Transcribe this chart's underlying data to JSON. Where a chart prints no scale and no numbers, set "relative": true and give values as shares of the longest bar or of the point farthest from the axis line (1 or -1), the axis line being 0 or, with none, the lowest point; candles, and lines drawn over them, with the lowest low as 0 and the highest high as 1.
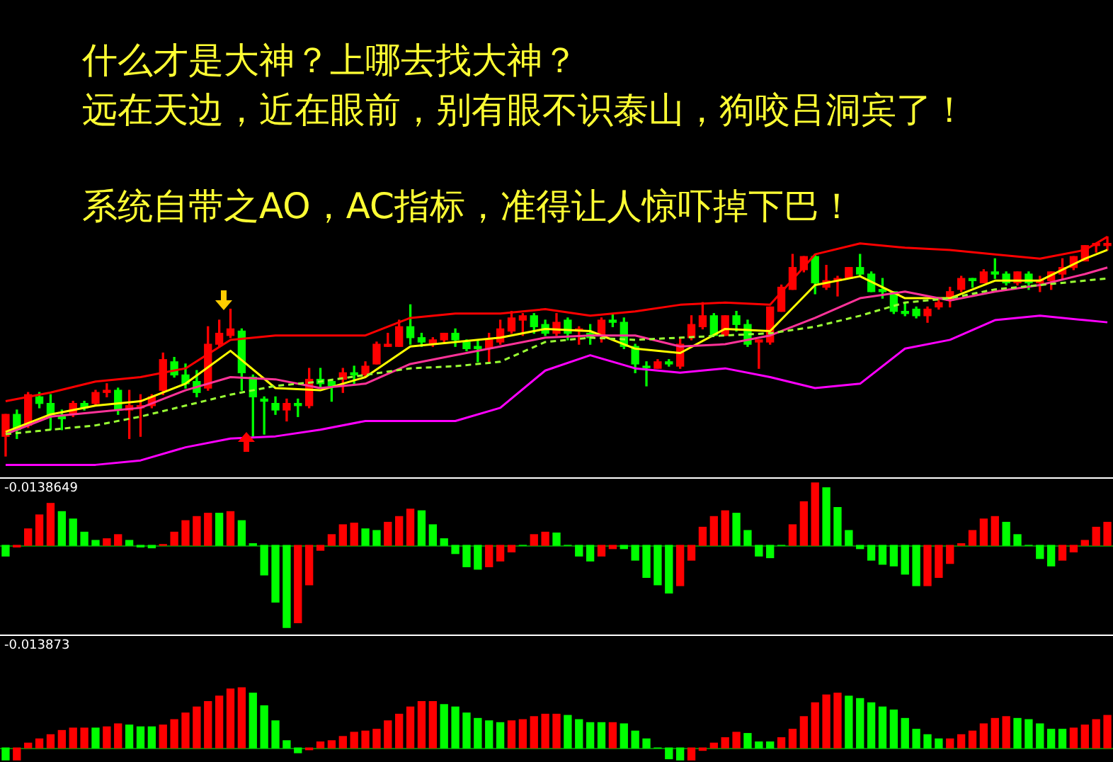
{
  "chart_data": [
    {
      "type": "candlestick",
      "relative": true,
      "title": "什么才是大神？上哪去找大神？",
      "subtitle": "远在天边，近在眼前，别有眼不识泰山，狗咬吕洞宾了！",
      "annotations": [
        "系统自带之AO，AC指标，准得让人惊吓掉下巴！"
      ],
      "categories": [
        null,
        null,
        null,
        null,
        null,
        null,
        null,
        null,
        null,
        null,
        null,
        null,
        null,
        null,
        null,
        null,
        null,
        null,
        null,
        null,
        null,
        null,
        null,
        null,
        null,
        null,
        null,
        null,
        null,
        null,
        null,
        null,
        null,
        null,
        null,
        null,
        null,
        null,
        null,
        null,
        null,
        null,
        null,
        null,
        null,
        null,
        null,
        null,
        null,
        null,
        null,
        null,
        null,
        null,
        null,
        null,
        null,
        null,
        null,
        null,
        null,
        null,
        null,
        null,
        null,
        null,
        null,
        null,
        null,
        null,
        null,
        null,
        null,
        null,
        null,
        null,
        null,
        null,
        null,
        null,
        null,
        null,
        null,
        null,
        null,
        null,
        null,
        null,
        null,
        null,
        null,
        null,
        null,
        null,
        null,
        null,
        null,
        null,
        null
      ],
      "ohlc": [
        [
          0.09,
          0.19,
          0,
          0.19
        ],
        [
          0.19,
          0.21,
          0.08,
          0.12
        ],
        [
          0.14,
          0.29,
          0.13,
          0.28
        ],
        [
          0.27,
          0.29,
          0.22,
          0.24
        ],
        [
          0.24,
          0.28,
          0.12,
          0.19
        ],
        [
          0.18,
          0.21,
          0.12,
          0.17
        ],
        [
          0.19,
          0.25,
          0.18,
          0.24
        ],
        [
          0.24,
          0.25,
          0.21,
          0.22
        ],
        [
          0.24,
          0.3,
          0.23,
          0.29
        ],
        [
          0.29,
          0.33,
          0.27,
          0.3
        ],
        [
          0.3,
          0.31,
          0.19,
          0.21
        ],
        [
          0.21,
          0.3,
          0.08,
          0.23
        ],
        [
          0.22,
          0.28,
          0.09,
          0.23
        ],
        [
          0.23,
          0.28,
          0.22,
          0.27
        ],
        [
          0.3,
          0.47,
          0.28,
          0.44
        ],
        [
          0.43,
          0.45,
          0.36,
          0.37
        ],
        [
          0.37,
          0.42,
          0.31,
          0.33
        ],
        [
          0.34,
          0.39,
          0.27,
          0.29
        ],
        [
          0.31,
          0.59,
          0.3,
          0.51
        ],
        [
          0.51,
          0.62,
          0.5,
          0.56
        ],
        [
          0.55,
          0.67,
          0.54,
          0.58
        ],
        [
          0.57,
          0.58,
          0.3,
          0.38
        ],
        [
          0.36,
          0.37,
          0.09,
          0.27
        ],
        [
          0.26,
          0.27,
          0.1,
          0.25
        ],
        [
          0.24,
          0.27,
          0.19,
          0.21
        ],
        [
          0.21,
          0.26,
          0.16,
          0.24
        ],
        [
          0.24,
          0.26,
          0.18,
          0.23
        ],
        [
          0.23,
          0.4,
          0.22,
          0.35
        ],
        [
          0.35,
          0.4,
          0.31,
          0.33
        ],
        [
          0.34,
          0.35,
          0.25,
          0.32
        ],
        [
          0.35,
          0.4,
          0.29,
          0.38
        ],
        [
          0.38,
          0.41,
          0.33,
          0.37
        ],
        [
          0.37,
          0.43,
          0.36,
          0.41
        ],
        [
          0.42,
          0.52,
          0.42,
          0.51
        ],
        [
          0.5,
          0.56,
          0.5,
          0.51
        ],
        [
          0.5,
          0.62,
          0.5,
          0.59
        ],
        [
          0.59,
          0.69,
          0.51,
          0.54
        ],
        [
          0.54,
          0.56,
          0.5,
          0.52
        ],
        [
          0.51,
          0.54,
          0.5,
          0.53
        ],
        [
          0.53,
          0.56,
          0.52,
          0.56
        ],
        [
          0.56,
          0.58,
          0.5,
          0.53
        ],
        [
          0.52,
          0.53,
          0.48,
          0.49
        ],
        [
          0.5,
          0.53,
          0.43,
          0.49
        ],
        [
          0.49,
          0.56,
          0.43,
          0.53
        ],
        [
          0.52,
          0.62,
          0.51,
          0.58
        ],
        [
          0.57,
          0.66,
          0.56,
          0.63
        ],
        [
          0.62,
          0.65,
          0.55,
          0.64
        ],
        [
          0.64,
          0.65,
          0.56,
          0.59
        ],
        [
          0.6,
          0.62,
          0.55,
          0.56
        ],
        [
          0.56,
          0.65,
          0.55,
          0.61
        ],
        [
          0.62,
          0.63,
          0.53,
          0.56
        ],
        [
          0.57,
          0.59,
          0.51,
          0.58
        ],
        [
          0.56,
          0.6,
          0.51,
          0.54
        ],
        [
          0.55,
          0.63,
          0.52,
          0.62
        ],
        [
          0.62,
          0.65,
          0.59,
          0.61
        ],
        [
          0.61,
          0.63,
          0.49,
          0.5
        ],
        [
          0.5,
          0.51,
          0.38,
          0.42
        ],
        [
          0.41,
          0.43,
          0.32,
          0.41
        ],
        [
          0.4,
          0.44,
          0.4,
          0.43
        ],
        [
          0.43,
          0.44,
          0.41,
          0.42
        ],
        [
          0.41,
          0.54,
          0.4,
          0.51
        ],
        [
          0.54,
          0.64,
          0.53,
          0.6
        ],
        [
          0.59,
          0.7,
          0.58,
          0.64
        ],
        [
          0.64,
          0.65,
          0.55,
          0.55
        ],
        [
          0.55,
          0.64,
          0.55,
          0.64
        ],
        [
          0.64,
          0.66,
          0.57,
          0.6
        ],
        [
          0.6,
          0.62,
          0.5,
          0.51
        ],
        [
          0.52,
          0.53,
          0.4,
          0.53
        ],
        [
          0.52,
          0.68,
          0.51,
          0.68
        ],
        [
          0.66,
          0.78,
          0.66,
          0.77
        ],
        [
          0.76,
          0.92,
          0.76,
          0.86
        ],
        [
          0.85,
          0.91,
          0.84,
          0.91
        ],
        [
          0.91,
          0.92,
          0.74,
          0.79
        ],
        [
          0.77,
          0.87,
          0.76,
          0.8
        ],
        [
          0.8,
          0.82,
          0.73,
          0.81
        ],
        [
          0.81,
          0.86,
          0.81,
          0.86
        ],
        [
          0.86,
          0.92,
          0.82,
          0.83
        ],
        [
          0.83,
          0.84,
          0.75,
          0.75
        ],
        [
          0.76,
          0.81,
          0.72,
          0.75
        ],
        [
          0.75,
          0.75,
          0.65,
          0.66
        ],
        [
          0.66,
          0.7,
          0.64,
          0.65
        ],
        [
          0.67,
          0.68,
          0.63,
          0.64
        ],
        [
          0.64,
          0.68,
          0.61,
          0.67
        ],
        [
          0.68,
          0.71,
          0.67,
          0.7
        ],
        [
          0.71,
          0.77,
          0.68,
          0.75
        ],
        [
          0.76,
          0.82,
          0.75,
          0.81
        ],
        [
          0.81,
          0.81,
          0.77,
          0.8
        ],
        [
          0.79,
          0.85,
          0.79,
          0.84
        ],
        [
          0.84,
          0.9,
          0.81,
          0.83
        ],
        [
          0.83,
          0.84,
          0.78,
          0.79
        ],
        [
          0.79,
          0.84,
          0.78,
          0.84
        ],
        [
          0.83,
          0.84,
          0.76,
          0.79
        ],
        [
          0.79,
          0.82,
          0.75,
          0.8
        ],
        [
          0.8,
          0.84,
          0.76,
          0.84
        ],
        [
          0.83,
          0.9,
          0.81,
          0.86
        ],
        [
          0.86,
          0.91,
          0.85,
          0.91
        ],
        [
          0.89,
          0.96,
          0.89,
          0.96
        ],
        [
          0.96,
          0.97,
          0.93,
          0.97
        ],
        [
          0.96,
          1,
          0.94,
          0.97
        ]
      ],
      "colors": [
        "#ff0000",
        "#00ff00",
        "#ff0000",
        "#00ff00",
        "#00ff00",
        "#00ff00",
        "#ff0000",
        "#00ff00",
        "#ff0000",
        "#ff0000",
        "#00ff00",
        "#ff0000",
        "#ff0000",
        "#ff0000",
        "#ff0000",
        "#00ff00",
        "#00ff00",
        "#00ff00",
        "#ff0000",
        "#ff0000",
        "#ff0000",
        "#00ff00",
        "#00ff00",
        "#00ff00",
        "#00ff00",
        "#ff0000",
        "#00ff00",
        "#ff0000",
        "#00ff00",
        "#00ff00",
        "#ff0000",
        "#00ff00",
        "#ff0000",
        "#ff0000",
        "#ff0000",
        "#ff0000",
        "#00ff00",
        "#00ff00",
        "#ff0000",
        "#ff0000",
        "#00ff00",
        "#00ff00",
        "#00ff00",
        "#ff0000",
        "#ff0000",
        "#ff0000",
        "#ff0000",
        "#00ff00",
        "#00ff00",
        "#ff0000",
        "#00ff00",
        "#ff0000",
        "#00ff00",
        "#ff0000",
        "#00ff00",
        "#00ff00",
        "#00ff00",
        "#00ff00",
        "#ff0000",
        "#00ff00",
        "#ff0000",
        "#ff0000",
        "#ff0000",
        "#00ff00",
        "#ff0000",
        "#00ff00",
        "#00ff00",
        "#ff0000",
        "#ff0000",
        "#ff0000",
        "#ff0000",
        "#ff0000",
        "#00ff00",
        "#ff0000",
        "#ff0000",
        "#ff0000",
        "#00ff00",
        "#00ff00",
        "#00ff00",
        "#00ff00",
        "#00ff00",
        "#00ff00",
        "#ff0000",
        "#ff0000",
        "#ff0000",
        "#ff0000",
        "#00ff00",
        "#ff0000",
        "#00ff00",
        "#00ff00",
        "#ff0000",
        "#00ff00",
        "#ff0000",
        "#ff0000",
        "#ff0000",
        "#ff0000",
        "#ff0000",
        "#ff0000",
        "#ff0000"
      ],
      "series": [
        {
          "type": "line",
          "color": "#ff00ff",
          "values": [
            -0.04,
            null,
            null,
            null,
            -0.04,
            null,
            null,
            null,
            -0.04,
            null,
            null,
            null,
            -0.02,
            null,
            null,
            null,
            0.04,
            null,
            null,
            null,
            0.08,
            null,
            null,
            null,
            0.09,
            null,
            null,
            null,
            0.12,
            null,
            null,
            null,
            0.16,
            null,
            null,
            null,
            0.16,
            null,
            null,
            null,
            0.16,
            null,
            null,
            null,
            0.22,
            null,
            null,
            null,
            0.39,
            null,
            null,
            null,
            0.46,
            null,
            null,
            null,
            0.4,
            null,
            null,
            null,
            0.38,
            null,
            null,
            null,
            0.4,
            null,
            null,
            null,
            0.36,
            null,
            null,
            null,
            0.31,
            null,
            null,
            null,
            0.33,
            null,
            null,
            null,
            0.49,
            null,
            null,
            null,
            0.53,
            null,
            null,
            null,
            0.62,
            null,
            null,
            null,
            0.64,
            null,
            null,
            null,
            0.62,
            null,
            0.61
          ]
        },
        {
          "type": "line",
          "color": "#ff0000",
          "values": [
            0.25,
            null,
            null,
            null,
            0.29,
            null,
            null,
            null,
            0.34,
            null,
            null,
            null,
            0.36,
            null,
            null,
            null,
            0.4,
            null,
            null,
            null,
            0.53,
            null,
            null,
            null,
            0.55,
            null,
            null,
            null,
            0.55,
            null,
            null,
            null,
            0.55,
            null,
            null,
            null,
            0.63,
            null,
            null,
            null,
            0.65,
            null,
            null,
            null,
            0.65,
            null,
            null,
            null,
            0.67,
            null,
            null,
            null,
            0.64,
            null,
            null,
            null,
            0.66,
            null,
            null,
            null,
            0.69,
            null,
            null,
            null,
            0.7,
            null,
            null,
            null,
            0.69,
            null,
            null,
            null,
            0.92,
            null,
            null,
            null,
            0.97,
            null,
            null,
            null,
            0.95,
            null,
            null,
            null,
            0.94,
            null,
            null,
            null,
            0.92,
            null,
            null,
            null,
            0.9,
            null,
            null,
            null,
            0.94,
            null,
            1
          ]
        },
        {
          "type": "line",
          "color": "#99ff33",
          "line_style": "dashed",
          "values": [
            0.1,
            null,
            null,
            null,
            0.12,
            null,
            null,
            null,
            0.14,
            null,
            null,
            null,
            0.18,
            null,
            null,
            null,
            0.23,
            null,
            null,
            null,
            0.28,
            null,
            null,
            null,
            0.32,
            null,
            null,
            null,
            0.34,
            null,
            null,
            null,
            0.37,
            null,
            null,
            null,
            0.4,
            null,
            null,
            null,
            0.41,
            null,
            null,
            null,
            0.43,
            null,
            null,
            null,
            0.52,
            null,
            null,
            null,
            0.54,
            null,
            null,
            null,
            0.53,
            null,
            null,
            null,
            0.54,
            null,
            null,
            null,
            0.55,
            null,
            null,
            null,
            0.56,
            null,
            null,
            null,
            0.59,
            null,
            null,
            null,
            0.64,
            null,
            null,
            null,
            0.7,
            null,
            null,
            null,
            0.72,
            null,
            null,
            null,
            0.76,
            null,
            null,
            null,
            0.78,
            null,
            null,
            null,
            0.8,
            null,
            0.81
          ]
        },
        {
          "type": "line",
          "color": "#ff3399",
          "values": [
            0.1,
            null,
            null,
            null,
            0.18,
            null,
            null,
            null,
            0.2,
            null,
            null,
            null,
            0.22,
            null,
            null,
            null,
            0.3,
            null,
            null,
            null,
            0.36,
            null,
            null,
            null,
            0.35,
            null,
            null,
            null,
            0.31,
            null,
            null,
            null,
            0.33,
            null,
            null,
            null,
            0.42,
            null,
            null,
            null,
            0.46,
            null,
            null,
            null,
            0.5,
            null,
            null,
            null,
            0.54,
            null,
            null,
            null,
            0.55,
            null,
            null,
            null,
            0.55,
            null,
            null,
            null,
            0.5,
            null,
            null,
            null,
            0.51,
            null,
            null,
            null,
            0.55,
            null,
            null,
            null,
            0.63,
            null,
            null,
            null,
            0.72,
            null,
            null,
            null,
            0.75,
            null,
            null,
            null,
            0.71,
            null,
            null,
            null,
            0.75,
            null,
            null,
            null,
            0.78,
            null,
            null,
            null,
            0.83,
            null,
            0.86
          ]
        },
        {
          "type": "line",
          "color": "#ffff00",
          "values": [
            0.11,
            null,
            null,
            null,
            0.19,
            null,
            null,
            null,
            0.23,
            null,
            null,
            null,
            0.25,
            null,
            null,
            null,
            0.33,
            null,
            null,
            null,
            0.48,
            null,
            null,
            null,
            0.31,
            null,
            null,
            null,
            0.3,
            null,
            null,
            null,
            0.36,
            null,
            null,
            null,
            0.5,
            null,
            null,
            null,
            0.52,
            null,
            null,
            null,
            0.54,
            null,
            null,
            null,
            0.58,
            null,
            null,
            null,
            0.57,
            null,
            null,
            null,
            0.49,
            null,
            null,
            null,
            0.47,
            null,
            null,
            null,
            0.58,
            null,
            null,
            null,
            0.57,
            null,
            null,
            null,
            0.78,
            null,
            null,
            null,
            0.82,
            null,
            null,
            null,
            0.72,
            null,
            null,
            null,
            0.72,
            null,
            null,
            null,
            0.8,
            null,
            null,
            null,
            0.8,
            null,
            null,
            null,
            0.9,
            null,
            0.94
          ]
        }
      ]
    },
    {
      "type": "bar",
      "relative": true,
      "annotations": [
        "-0.0138649"
      ],
      "ref_lines": [
        {
          "axis": "y",
          "value": 0,
          "color": "#008000"
        }
      ],
      "categories": [
        null,
        null,
        null,
        null,
        null,
        null,
        null,
        null,
        null,
        null,
        null,
        null,
        null,
        null,
        null,
        null,
        null,
        null,
        null,
        null,
        null,
        null,
        null,
        null,
        null,
        null,
        null,
        null,
        null,
        null,
        null,
        null,
        null,
        null,
        null,
        null,
        null,
        null,
        null,
        null,
        null,
        null,
        null,
        null,
        null,
        null,
        null,
        null,
        null,
        null,
        null,
        null,
        null,
        null,
        null,
        null,
        null,
        null,
        null,
        null,
        null,
        null,
        null,
        null,
        null,
        null,
        null,
        null,
        null,
        null,
        null,
        null,
        null,
        null,
        null,
        null,
        null,
        null,
        null,
        null,
        null,
        null,
        null,
        null,
        null,
        null,
        null,
        null,
        null,
        null,
        null,
        null,
        null,
        null,
        null,
        null,
        null,
        null,
        null
      ],
      "values": [
        -0.13,
        -0.02,
        0.2,
        0.37,
        0.51,
        0.41,
        0.32,
        0.16,
        0.06,
        0.08,
        0.13,
        0.06,
        -0.02,
        -0.03,
        0.01,
        0.16,
        0.3,
        0.35,
        0.39,
        0.39,
        0.41,
        0.3,
        0.02,
        -0.36,
        -0.69,
        -1,
        -0.94,
        -0.48,
        -0.06,
        0.13,
        0.25,
        0.27,
        0.2,
        0.18,
        0.28,
        0.35,
        0.44,
        0.42,
        0.25,
        0.08,
        -0.1,
        -0.26,
        -0.29,
        -0.26,
        -0.19,
        -0.08,
        0,
        0.13,
        0.16,
        0.15,
        0,
        -0.13,
        -0.19,
        -0.13,
        -0.04,
        -0.04,
        -0.18,
        -0.39,
        -0.48,
        -0.58,
        -0.49,
        -0.18,
        0.22,
        0.35,
        0.42,
        0.39,
        0.18,
        -0.13,
        -0.15,
        0,
        0.25,
        0.53,
        0.76,
        0.7,
        0.46,
        0.18,
        -0.04,
        -0.18,
        -0.23,
        -0.25,
        -0.35,
        -0.49,
        -0.49,
        -0.39,
        -0.22,
        0.02,
        0.18,
        0.32,
        0.35,
        0.28,
        0.13,
        0,
        -0.16,
        -0.25,
        -0.18,
        -0.08,
        0.06,
        0.22,
        0.28
      ],
      "colors": [
        "#00ff00",
        "#ff0000",
        "#ff0000",
        "#ff0000",
        "#ff0000",
        "#00ff00",
        "#00ff00",
        "#00ff00",
        "#00ff00",
        "#ff0000",
        "#ff0000",
        "#00ff00",
        "#00ff00",
        "#00ff00",
        "#ff0000",
        "#ff0000",
        "#ff0000",
        "#ff0000",
        "#ff0000",
        "#00ff00",
        "#ff0000",
        "#00ff00",
        "#00ff00",
        "#00ff00",
        "#00ff00",
        "#00ff00",
        "#ff0000",
        "#ff0000",
        "#ff0000",
        "#ff0000",
        "#ff0000",
        "#ff0000",
        "#00ff00",
        "#00ff00",
        "#ff0000",
        "#ff0000",
        "#ff0000",
        "#00ff00",
        "#00ff00",
        "#00ff00",
        "#00ff00",
        "#00ff00",
        "#00ff00",
        "#ff0000",
        "#ff0000",
        "#ff0000",
        "#00ff00",
        "#ff0000",
        "#ff0000",
        "#00ff00",
        "#00ff00",
        "#00ff00",
        "#00ff00",
        "#ff0000",
        "#ff0000",
        "#00ff00",
        "#00ff00",
        "#00ff00",
        "#00ff00",
        "#00ff00",
        "#ff0000",
        "#ff0000",
        "#ff0000",
        "#ff0000",
        "#ff0000",
        "#00ff00",
        "#00ff00",
        "#00ff00",
        "#00ff00",
        "#00ff00",
        "#ff0000",
        "#ff0000",
        "#ff0000",
        "#00ff00",
        "#00ff00",
        "#00ff00",
        "#00ff00",
        "#00ff00",
        "#00ff00",
        "#00ff00",
        "#00ff00",
        "#00ff00",
        "#ff0000",
        "#ff0000",
        "#ff0000",
        "#ff0000",
        "#ff0000",
        "#ff0000",
        "#ff0000",
        "#00ff00",
        "#00ff00",
        "#00ff00",
        "#00ff00",
        "#00ff00",
        "#ff0000",
        "#ff0000",
        "#ff0000",
        "#ff0000",
        "#ff0000"
      ]
    },
    {
      "type": "bar",
      "relative": true,
      "annotations": [
        "-0.013873"
      ],
      "ref_lines": [
        {
          "axis": "y",
          "value": 0,
          "color": "#008000"
        }
      ],
      "categories": [
        null,
        null,
        null,
        null,
        null,
        null,
        null,
        null,
        null,
        null,
        null,
        null,
        null,
        null,
        null,
        null,
        null,
        null,
        null,
        null,
        null,
        null,
        null,
        null,
        null,
        null,
        null,
        null,
        null,
        null,
        null,
        null,
        null,
        null,
        null,
        null,
        null,
        null,
        null,
        null,
        null,
        null,
        null,
        null,
        null,
        null,
        null,
        null,
        null,
        null,
        null,
        null,
        null,
        null,
        null,
        null,
        null,
        null,
        null,
        null,
        null,
        null,
        null,
        null,
        null,
        null,
        null,
        null,
        null,
        null,
        null,
        null,
        null,
        null,
        null,
        null,
        null,
        null,
        null,
        null,
        null,
        null,
        null,
        null,
        null,
        null,
        null,
        null,
        null,
        null,
        null,
        null,
        null,
        null,
        null,
        null,
        null,
        null,
        null
      ],
      "values": [
        -0.2,
        -0.2,
        0.08,
        0.15,
        0.22,
        0.29,
        0.33,
        0.33,
        0.33,
        0.35,
        0.4,
        0.38,
        0.35,
        0.35,
        0.38,
        0.47,
        0.58,
        0.68,
        0.77,
        0.86,
        0.98,
        1,
        0.91,
        0.7,
        0.45,
        0.12,
        -0.08,
        -0.03,
        0.1,
        0.12,
        0.19,
        0.26,
        0.28,
        0.31,
        0.45,
        0.56,
        0.68,
        0.77,
        0.77,
        0.72,
        0.68,
        0.58,
        0.49,
        0.45,
        0.42,
        0.45,
        0.47,
        0.52,
        0.56,
        0.56,
        0.54,
        0.47,
        0.42,
        0.42,
        0.42,
        0.4,
        0.28,
        0.15,
        0,
        -0.18,
        -0.2,
        -0.2,
        -0.04,
        0.08,
        0.17,
        0.26,
        0.24,
        0.1,
        0.1,
        0.17,
        0.31,
        0.52,
        0.75,
        0.88,
        0.91,
        0.86,
        0.82,
        0.75,
        0.68,
        0.63,
        0.49,
        0.31,
        0.22,
        0.15,
        0.15,
        0.22,
        0.28,
        0.4,
        0.49,
        0.52,
        0.49,
        0.47,
        0.4,
        0.31,
        0.31,
        0.33,
        0.38,
        0.47,
        0.54
      ],
      "colors": [
        "#00ff00",
        "#ff0000",
        "#ff0000",
        "#ff0000",
        "#ff0000",
        "#ff0000",
        "#ff0000",
        "#ff0000",
        "#00ff00",
        "#ff0000",
        "#ff0000",
        "#00ff00",
        "#00ff00",
        "#00ff00",
        "#ff0000",
        "#ff0000",
        "#ff0000",
        "#ff0000",
        "#ff0000",
        "#ff0000",
        "#ff0000",
        "#ff0000",
        "#00ff00",
        "#00ff00",
        "#00ff00",
        "#00ff00",
        "#00ff00",
        "#ff0000",
        "#ff0000",
        "#ff0000",
        "#ff0000",
        "#ff0000",
        "#ff0000",
        "#ff0000",
        "#ff0000",
        "#ff0000",
        "#ff0000",
        "#ff0000",
        "#ff0000",
        "#00ff00",
        "#00ff00",
        "#00ff00",
        "#00ff00",
        "#00ff00",
        "#00ff00",
        "#ff0000",
        "#ff0000",
        "#ff0000",
        "#ff0000",
        "#ff0000",
        "#00ff00",
        "#00ff00",
        "#00ff00",
        "#00ff00",
        "#ff0000",
        "#00ff00",
        "#00ff00",
        "#00ff00",
        "#00ff00",
        "#00ff00",
        "#00ff00",
        "#ff0000",
        "#ff0000",
        "#ff0000",
        "#ff0000",
        "#ff0000",
        "#00ff00",
        "#00ff00",
        "#00ff00",
        "#ff0000",
        "#ff0000",
        "#ff0000",
        "#ff0000",
        "#ff0000",
        "#ff0000",
        "#00ff00",
        "#00ff00",
        "#00ff00",
        "#00ff00",
        "#00ff00",
        "#00ff00",
        "#00ff00",
        "#00ff00",
        "#00ff00",
        "#ff0000",
        "#ff0000",
        "#ff0000",
        "#ff0000",
        "#ff0000",
        "#ff0000",
        "#00ff00",
        "#00ff00",
        "#00ff00",
        "#00ff00",
        "#00ff00",
        "#ff0000",
        "#ff0000",
        "#ff0000",
        "#ff0000"
      ]
    }
  ]
}
